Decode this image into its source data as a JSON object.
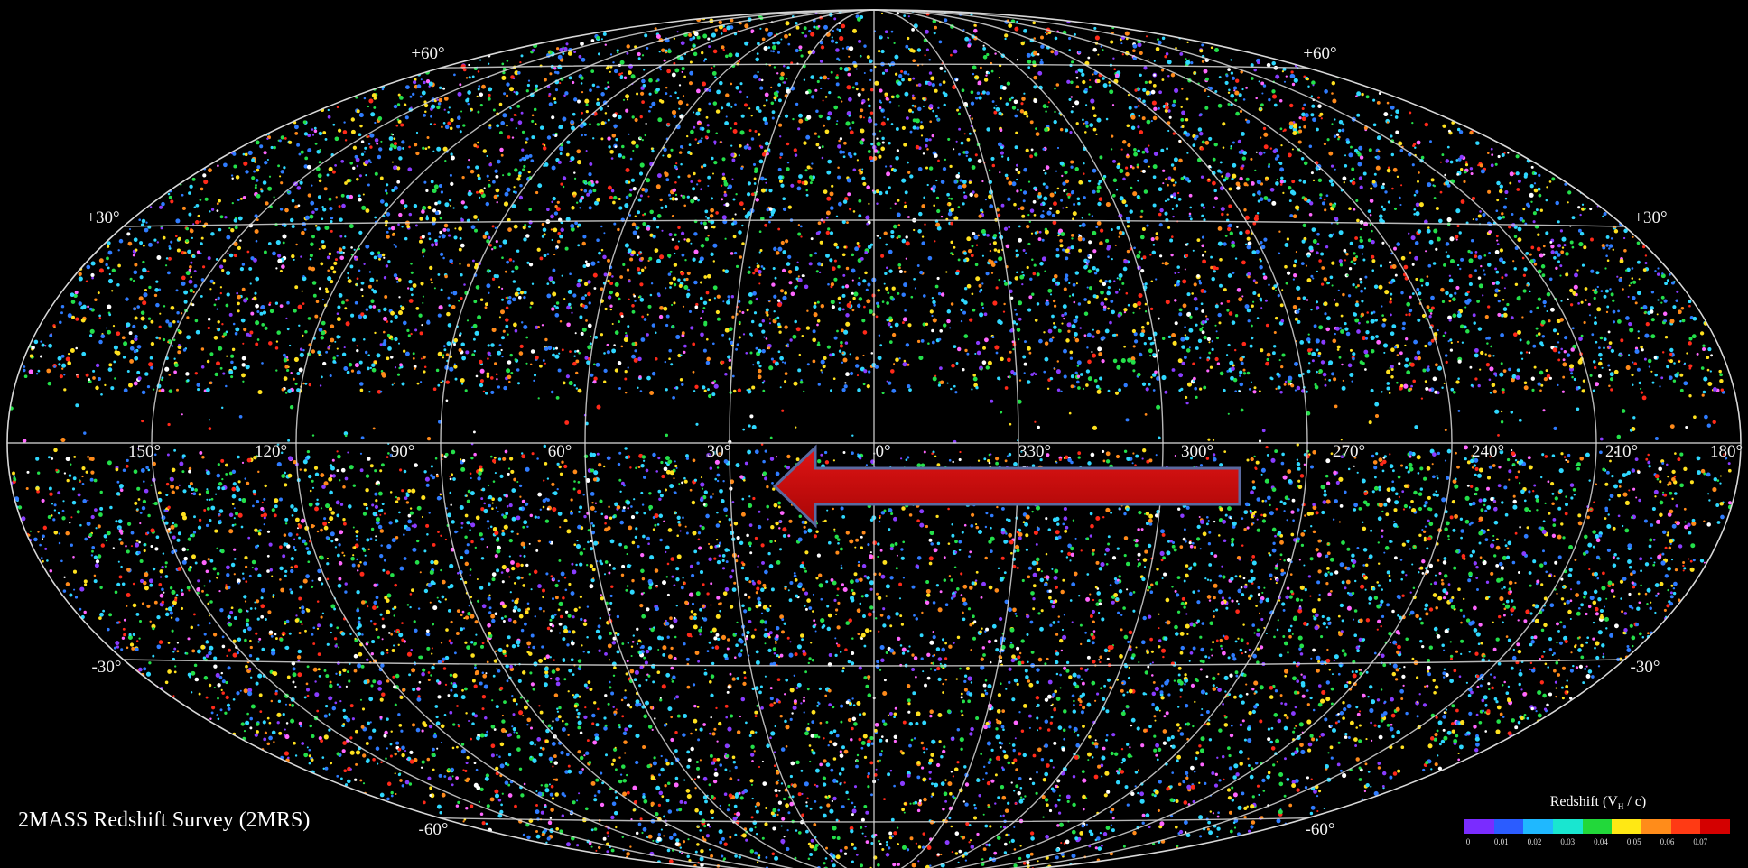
{
  "figure": {
    "title": "2MASS Redshift Survey (2MRS)",
    "background_color": "#000000",
    "grid_color": "#d8d8d8",
    "projection": "Aitoff all-sky",
    "longitude_labels": [
      "150°",
      "120°",
      "90°",
      "60°",
      "30°",
      "0°",
      "330°",
      "300°",
      "270°",
      "240°",
      "210°",
      "180°"
    ],
    "latitude_labels": {
      "north_60": "+60°",
      "north_30": "+30°",
      "south_30": "-30°",
      "south_60": "-60°"
    },
    "arrow": {
      "direction": "left",
      "color": "#c40a0a",
      "outline": "#5a6aa0"
    },
    "galaxy_colors": [
      "#8a3cff",
      "#2f7cff",
      "#2fd8ff",
      "#24e04a",
      "#ffe11f",
      "#ff8a1a",
      "#ff2a1a",
      "#ff66ff",
      "#ffffff"
    ]
  },
  "legend": {
    "title": "Redshift (V",
    "title_sub": "H",
    "title_end": " / c)",
    "bins": [
      {
        "color": "#7a2cff"
      },
      {
        "color": "#2b5cff"
      },
      {
        "color": "#1fb8ff"
      },
      {
        "color": "#19e6d0"
      },
      {
        "color": "#22d83a"
      },
      {
        "color": "#ffe814"
      },
      {
        "color": "#ff8c1a"
      },
      {
        "color": "#ff3a14"
      },
      {
        "color": "#d40000"
      }
    ],
    "ticks": [
      "0",
      "0.01",
      "0.02",
      "0.03",
      "0.04",
      "0.05",
      "0.06",
      "0.07"
    ]
  }
}
